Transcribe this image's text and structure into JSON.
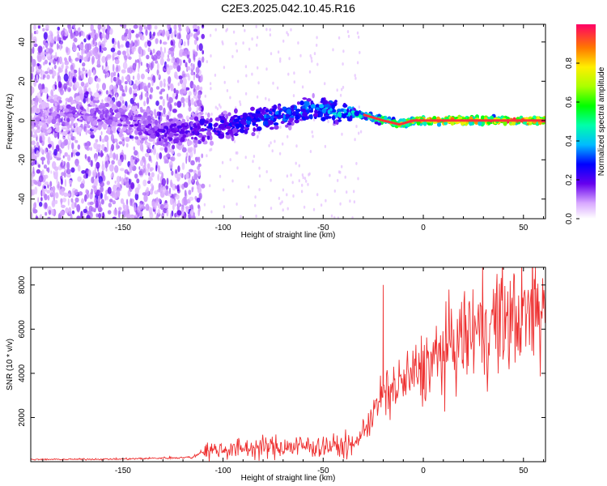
{
  "title": "C2E3.2025.042.10.45.R16",
  "chart_data": [
    {
      "type": "heatmap",
      "xlabel": "Height of straight line (km)",
      "ylabel": "Frequency (Hz)",
      "xlim": [
        -196,
        61
      ],
      "ylim": [
        -50,
        49
      ],
      "x_ticks": [
        -150,
        -100,
        -50,
        0,
        50
      ],
      "y_ticks": [
        -40,
        -20,
        0,
        20,
        40
      ],
      "colorbar": {
        "label": "Normalized spectral amplitude",
        "range": [
          0.0,
          1.0
        ],
        "ticks": [
          0.0,
          0.2,
          0.4,
          0.6,
          0.8
        ],
        "tick_labels": [
          "0.0",
          "0.2",
          "0.4",
          "0.6",
          "0.8"
        ]
      },
      "ridge": [
        {
          "x": -196,
          "y": 2,
          "amp": 0.1
        },
        {
          "x": -175,
          "y": 4,
          "amp": 0.15
        },
        {
          "x": -150,
          "y": 1,
          "amp": 0.15
        },
        {
          "x": -130,
          "y": -6,
          "amp": 0.2
        },
        {
          "x": -115,
          "y": -4,
          "amp": 0.22
        },
        {
          "x": -100,
          "y": -3,
          "amp": 0.28
        },
        {
          "x": -85,
          "y": 0,
          "amp": 0.32
        },
        {
          "x": -70,
          "y": 3,
          "amp": 0.35
        },
        {
          "x": -55,
          "y": 6,
          "amp": 0.38
        },
        {
          "x": -40,
          "y": 4,
          "amp": 0.42
        },
        {
          "x": -30,
          "y": 3,
          "amp": 0.5
        },
        {
          "x": -20,
          "y": 0,
          "amp": 0.65
        },
        {
          "x": -12,
          "y": -2,
          "amp": 0.78
        },
        {
          "x": -5,
          "y": 0,
          "amp": 0.85
        },
        {
          "x": 0,
          "y": 0,
          "amp": 0.92
        },
        {
          "x": 30,
          "y": 0,
          "amp": 0.95
        },
        {
          "x": 61,
          "y": 0,
          "amp": 0.95
        }
      ]
    },
    {
      "type": "line",
      "xlabel": "Height of straight line (km)",
      "ylabel": "SNR (10 * v/v)",
      "xlim": [
        -196,
        61
      ],
      "ylim": [
        0,
        8800
      ],
      "x_ticks": [
        -150,
        -100,
        -50,
        0,
        50
      ],
      "y_ticks": [
        2000,
        4000,
        6000,
        8000
      ],
      "color": "#ee3030",
      "envelope": [
        {
          "x": -196,
          "y": 100
        },
        {
          "x": -150,
          "y": 120
        },
        {
          "x": -115,
          "y": 200
        },
        {
          "x": -110,
          "y": 500
        },
        {
          "x": -80,
          "y": 650
        },
        {
          "x": -60,
          "y": 700
        },
        {
          "x": -35,
          "y": 700
        },
        {
          "x": -30,
          "y": 1400
        },
        {
          "x": -20,
          "y": 3000
        },
        {
          "x": -10,
          "y": 3600
        },
        {
          "x": 0,
          "y": 4200
        },
        {
          "x": 10,
          "y": 4900
        },
        {
          "x": 20,
          "y": 5600
        },
        {
          "x": 30,
          "y": 6200
        },
        {
          "x": 45,
          "y": 6500
        },
        {
          "x": 55,
          "y": 6700
        },
        {
          "x": 61,
          "y": 6900
        }
      ],
      "peaks": [
        {
          "x": -20,
          "y": 8000
        },
        {
          "x": 56,
          "y": 8800
        }
      ]
    }
  ]
}
